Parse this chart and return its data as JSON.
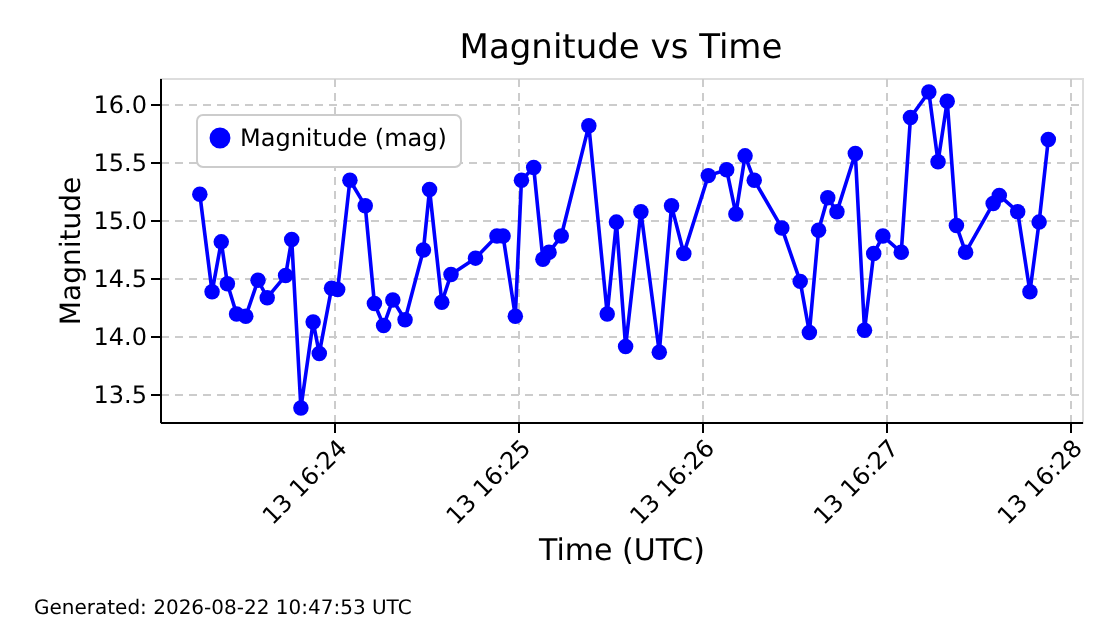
{
  "chart_data": {
    "type": "line",
    "title": "Magnitude vs Time",
    "xlabel": "Time (UTC)",
    "ylabel": "Magnitude",
    "x": [
      "2026-08-13T16:23:16",
      "2026-08-13T16:23:20",
      "2026-08-13T16:23:23",
      "2026-08-13T16:23:25",
      "2026-08-13T16:23:28",
      "2026-08-13T16:23:31",
      "2026-08-13T16:23:35",
      "2026-08-13T16:23:38",
      "2026-08-13T16:23:44",
      "2026-08-13T16:23:46",
      "2026-08-13T16:23:49",
      "2026-08-13T16:23:53",
      "2026-08-13T16:23:55",
      "2026-08-13T16:23:59",
      "2026-08-13T16:24:01",
      "2026-08-13T16:24:05",
      "2026-08-13T16:24:10",
      "2026-08-13T16:24:13",
      "2026-08-13T16:24:16",
      "2026-08-13T16:24:19",
      "2026-08-13T16:24:23",
      "2026-08-13T16:24:29",
      "2026-08-13T16:24:31",
      "2026-08-13T16:24:35",
      "2026-08-13T16:24:38",
      "2026-08-13T16:24:46",
      "2026-08-13T16:24:53",
      "2026-08-13T16:24:55",
      "2026-08-13T16:24:59",
      "2026-08-13T16:25:01",
      "2026-08-13T16:25:05",
      "2026-08-13T16:25:08",
      "2026-08-13T16:25:10",
      "2026-08-13T16:25:14",
      "2026-08-13T16:25:23",
      "2026-08-13T16:25:29",
      "2026-08-13T16:25:32",
      "2026-08-13T16:25:35",
      "2026-08-13T16:25:40",
      "2026-08-13T16:25:46",
      "2026-08-13T16:25:50",
      "2026-08-13T16:25:54",
      "2026-08-13T16:26:02",
      "2026-08-13T16:26:08",
      "2026-08-13T16:26:11",
      "2026-08-13T16:26:14",
      "2026-08-13T16:26:17",
      "2026-08-13T16:26:26",
      "2026-08-13T16:26:32",
      "2026-08-13T16:26:35",
      "2026-08-13T16:26:38",
      "2026-08-13T16:26:41",
      "2026-08-13T16:26:44",
      "2026-08-13T16:26:50",
      "2026-08-13T16:26:53",
      "2026-08-13T16:26:56",
      "2026-08-13T16:26:59",
      "2026-08-13T16:27:05",
      "2026-08-13T16:27:08",
      "2026-08-13T16:27:14",
      "2026-08-13T16:27:17",
      "2026-08-13T16:27:20",
      "2026-08-13T16:27:23",
      "2026-08-13T16:27:26",
      "2026-08-13T16:27:35",
      "2026-08-13T16:27:37",
      "2026-08-13T16:27:43",
      "2026-08-13T16:27:47",
      "2026-08-13T16:27:50",
      "2026-08-13T16:27:53"
    ],
    "series": [
      {
        "name": "Magnitude (mag)",
        "color": "#0000ff",
        "values": [
          15.22,
          14.38,
          14.81,
          14.45,
          14.19,
          14.17,
          14.48,
          14.33,
          14.52,
          14.83,
          13.38,
          14.12,
          13.85,
          14.41,
          14.4,
          15.34,
          15.12,
          14.28,
          14.09,
          14.31,
          14.14,
          14.74,
          15.26,
          14.29,
          14.53,
          14.67,
          14.86,
          14.86,
          14.17,
          15.34,
          15.45,
          14.66,
          14.72,
          14.86,
          15.81,
          14.19,
          14.98,
          13.91,
          15.07,
          13.86,
          15.12,
          14.71,
          15.38,
          15.43,
          15.05,
          15.55,
          15.34,
          14.93,
          14.47,
          14.03,
          14.91,
          15.19,
          15.07,
          15.57,
          14.05,
          14.71,
          14.86,
          14.72,
          15.88,
          16.1,
          15.5,
          16.02,
          14.95,
          14.72,
          15.14,
          15.21,
          15.07,
          14.38,
          14.98,
          15.69
        ]
      }
    ],
    "xlim": [
      "2026-08-13T16:23:03",
      "2026-08-13T16:28:04"
    ],
    "xticks": [
      {
        "value": "2026-08-13T16:24:00",
        "label": "13 16:24"
      },
      {
        "value": "2026-08-13T16:25:00",
        "label": "13 16:25"
      },
      {
        "value": "2026-08-13T16:26:00",
        "label": "13 16:26"
      },
      {
        "value": "2026-08-13T16:27:00",
        "label": "13 16:27"
      },
      {
        "value": "2026-08-13T16:28:00",
        "label": "13 16:28"
      }
    ],
    "ylim": [
      13.26,
      16.22
    ],
    "yticks": [
      13.5,
      {
        "value": 14,
        "label": "14.0"
      },
      14.5,
      {
        "value": 15,
        "label": "15.0"
      },
      15.5,
      {
        "value": 16,
        "label": "16.0"
      }
    ],
    "grid": true,
    "legend": "top left",
    "marker": "circle",
    "line_style": "solid",
    "annotations": [
      "Generated: 2026-08-22 10:47:53 UTC"
    ]
  }
}
